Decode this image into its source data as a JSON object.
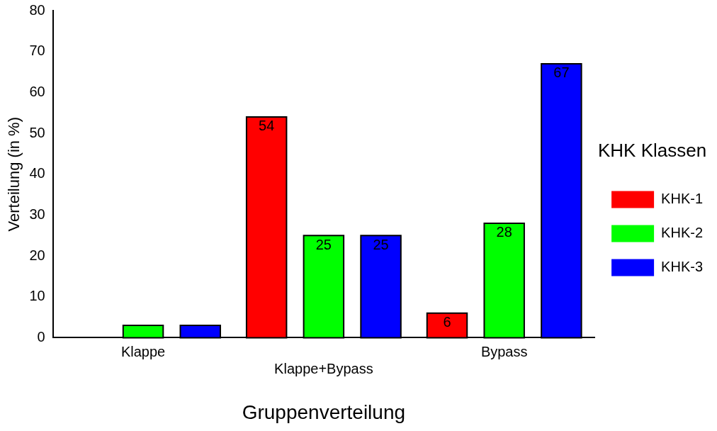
{
  "chart_data": {
    "type": "bar",
    "xlabel": "Gruppenverteilung",
    "ylabel": "Verteilung (in %)",
    "legend_title": "KHK Klassen",
    "categories": [
      "Klappe",
      "Klappe+Bypass",
      "Bypass"
    ],
    "series": [
      {
        "name": "KHK-1",
        "color": "#ff0000",
        "values": [
          0,
          54,
          6
        ],
        "value_labels": [
          null,
          "54",
          "6"
        ]
      },
      {
        "name": "KHK-2",
        "color": "#00ff00",
        "values": [
          3,
          25,
          28
        ],
        "value_labels": [
          null,
          "25",
          "28"
        ]
      },
      {
        "name": "KHK-3",
        "color": "#0000ff",
        "values": [
          3,
          25,
          67
        ],
        "value_labels": [
          null,
          "25",
          "67"
        ]
      }
    ],
    "ylim": [
      0,
      80
    ],
    "yticks": [
      0,
      10,
      20,
      30,
      40,
      50,
      60,
      70,
      80
    ],
    "grid": false,
    "legend": "right"
  }
}
